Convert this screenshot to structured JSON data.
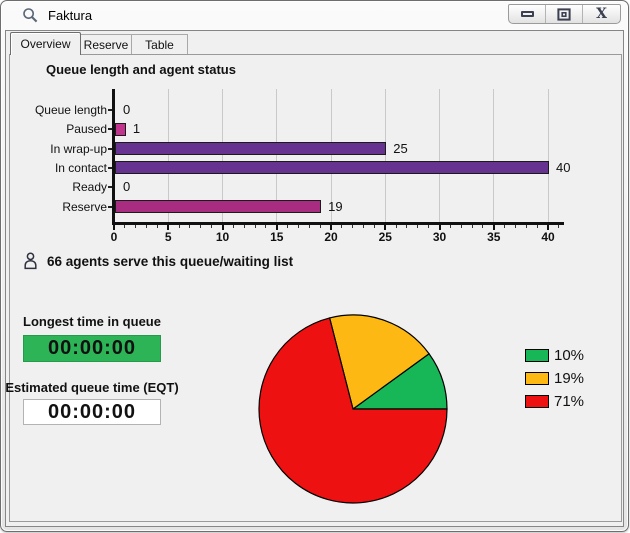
{
  "window": {
    "title": "Faktura",
    "controls": [
      {
        "name": "minimize"
      },
      {
        "name": "restore"
      },
      {
        "name": "close"
      }
    ]
  },
  "tabs": [
    {
      "label": "Overview",
      "active": true
    },
    {
      "label": "Reserve",
      "active": false
    },
    {
      "label": "Table",
      "active": false
    }
  ],
  "overview": {
    "agents_note": "66 agents serve this queue/waiting list",
    "longest_time": {
      "label": "Longest time in queue",
      "value": "00:00:00",
      "bg_color": "#2db457"
    },
    "eqt": {
      "label": "Estimated queue time (EQT)",
      "value": "00:00:00"
    }
  },
  "chart_data": [
    {
      "type": "bar",
      "orientation": "horizontal",
      "title": "Queue length and agent status",
      "categories": [
        "Queue length",
        "Paused",
        "In wrap-up",
        "In contact",
        "Ready",
        "Reserve"
      ],
      "values": [
        0,
        1,
        25,
        40,
        0,
        19
      ],
      "bar_colors": [
        "#663390",
        "#c2358c",
        "#663390",
        "#663390",
        "#663390",
        "#a82c7f"
      ],
      "xlim": [
        0,
        41.5
      ],
      "xticks": [
        0,
        5,
        10,
        15,
        20,
        25,
        30,
        35,
        40
      ],
      "minor_tick_step": 1,
      "grid": true
    },
    {
      "type": "pie",
      "values": [
        10,
        19,
        71
      ],
      "labels": [
        "10%",
        "19%",
        "71%"
      ],
      "colors": [
        "#17b757",
        "#fdb813",
        "#ee1111"
      ],
      "start_angle_deg": 0,
      "direction": "ccw",
      "legend_position": "right"
    }
  ]
}
